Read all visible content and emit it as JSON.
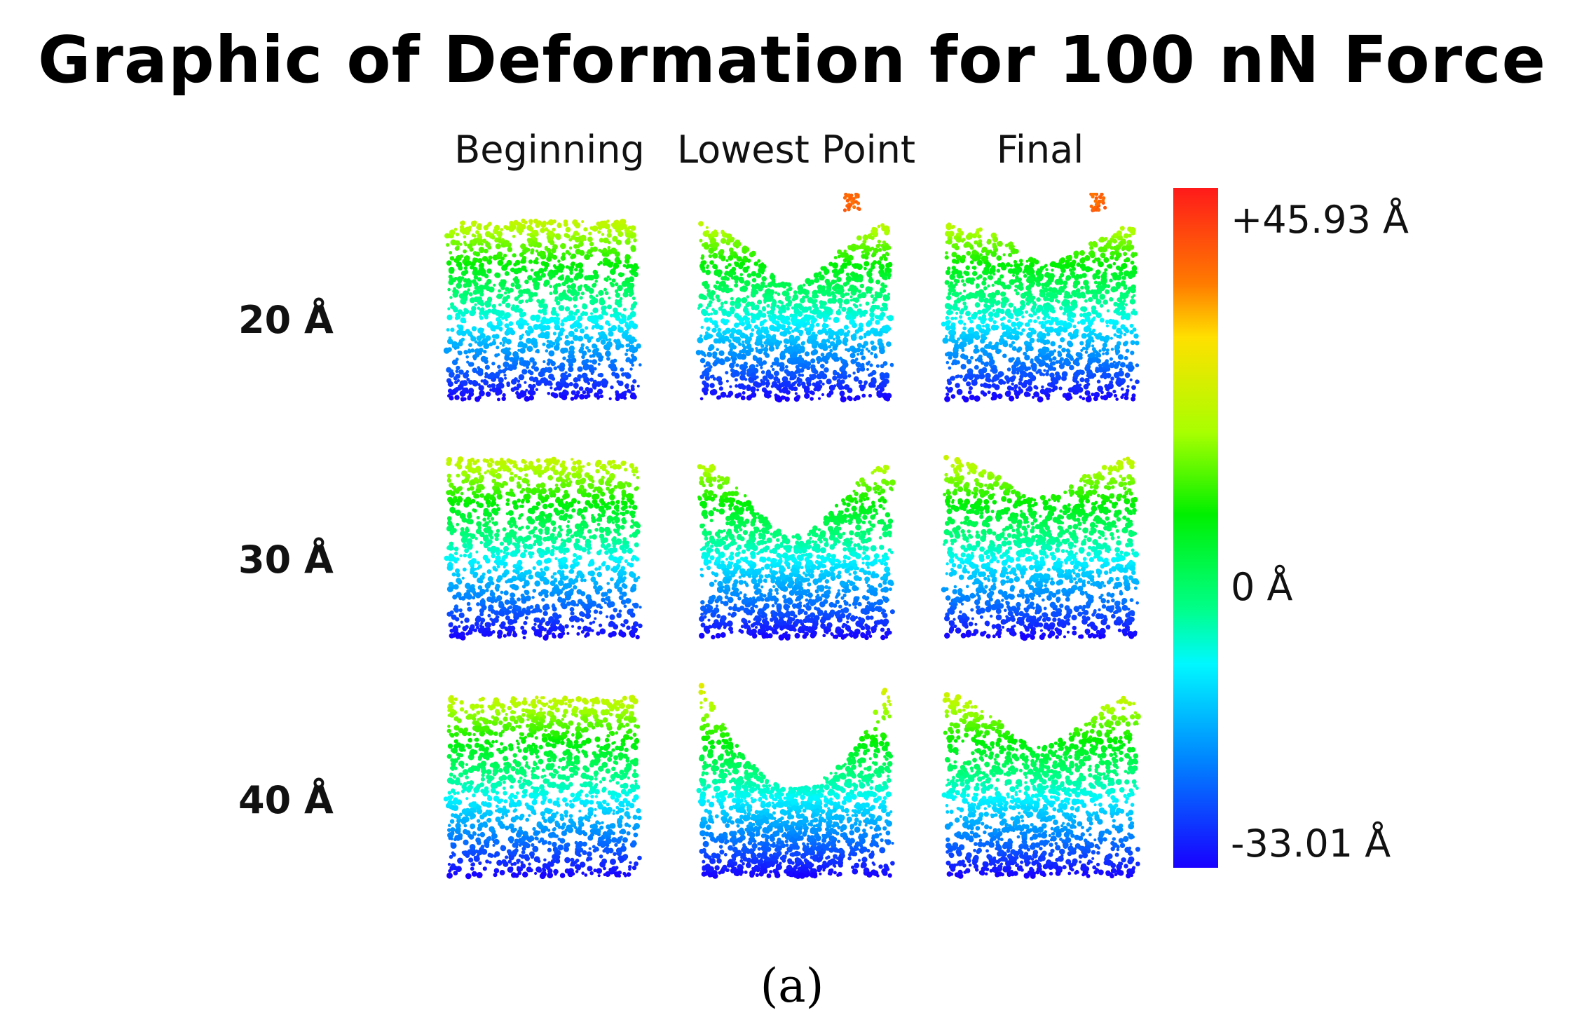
{
  "title": "Graphic of Deformation for 100 nN Force",
  "columns": [
    "Beginning",
    "Lowest Point",
    "Final"
  ],
  "rows": [
    "20 Å",
    "30 Å",
    "40 Å"
  ],
  "colorbar": {
    "max_label": "+45.93 Å",
    "mid_label": "0 Å",
    "min_label": "-33.01 Å",
    "top_color": "#ff1a1a",
    "mid_color": "#00f000",
    "bottom_color": "#1800ff"
  },
  "caption": "(a)"
}
